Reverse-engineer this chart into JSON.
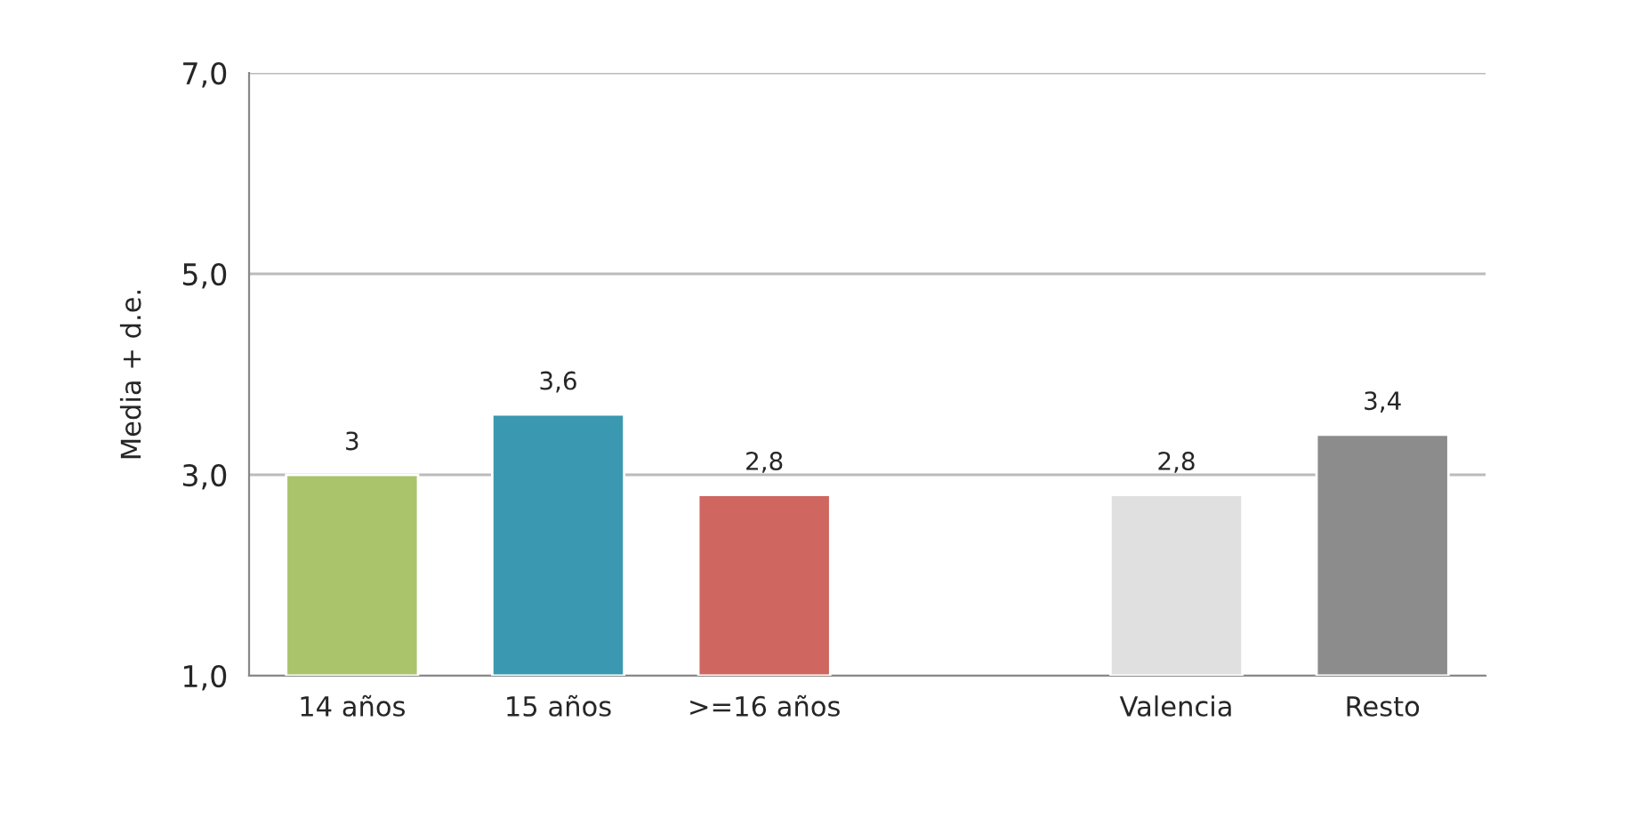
{
  "chart_data": {
    "type": "bar",
    "ylabel": "Media + d.e.",
    "categories": [
      "14 años",
      "15 años",
      ">=16 años",
      null,
      "Valencia",
      "Resto"
    ],
    "values": [
      3,
      3.6,
      2.8,
      null,
      2.8,
      3.4
    ],
    "colors": [
      "#a9c46b",
      "#3a98b0",
      "#cf6660",
      "#ffffff",
      "#e0e0e0",
      "#8c8c8c"
    ],
    "value_labels": [
      "3",
      "3,6",
      "2,8",
      null,
      "2,8",
      "3,4"
    ],
    "ylim": [
      1,
      7
    ],
    "yticks": [
      {
        "value": 1,
        "label": "1,0"
      },
      {
        "value": 3,
        "label": "3,0"
      },
      {
        "value": 5,
        "label": "5,0"
      },
      {
        "value": 7,
        "label": "7,0"
      }
    ],
    "grid": "y"
  }
}
